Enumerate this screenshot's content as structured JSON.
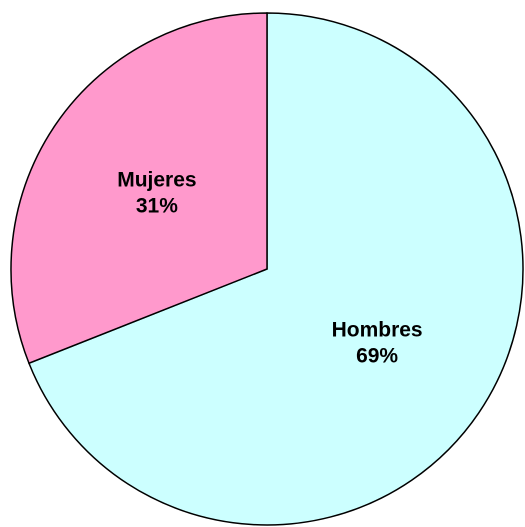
{
  "chart_data": {
    "type": "pie",
    "categories": [
      "Hombres",
      "Mujeres"
    ],
    "values": [
      69,
      31
    ],
    "value_labels": [
      "69%",
      "31%"
    ],
    "colors": [
      "#ccffff",
      "#ff99cc"
    ]
  }
}
